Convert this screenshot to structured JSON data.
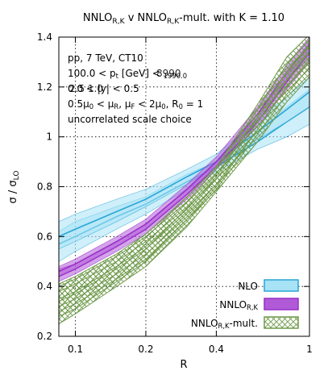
{
  "chart_data": {
    "type": "line",
    "title_parts": [
      "NNLO",
      "R,K",
      " v NNLO",
      "R,K",
      "-mult. with K = 1.10"
    ],
    "xlabel": "R",
    "ylabel_parts": [
      "σ / σ",
      "LO"
    ],
    "x_scale": "log",
    "xlim": [
      0.085,
      1.0
    ],
    "ylim": [
      0.2,
      1.4
    ],
    "x_ticks": [
      {
        "v": 0.1,
        "label": "0.1"
      },
      {
        "v": 0.2,
        "label": "0.2"
      },
      {
        "v": 0.4,
        "label": "0.4"
      },
      {
        "v": 1.0,
        "label": "1"
      }
    ],
    "y_ticks": [
      {
        "v": 0.2,
        "label": "0.2"
      },
      {
        "v": 0.4,
        "label": "0.4"
      },
      {
        "v": 0.6,
        "label": "0.6"
      },
      {
        "v": 0.8,
        "label": "0.8"
      },
      {
        "v": 1.0,
        "label": "1"
      },
      {
        "v": 1.2,
        "label": "1.2"
      },
      {
        "v": 1.4,
        "label": "1.4"
      }
    ],
    "grid": "dotted, at labeled ticks",
    "legend_placement": "bottom-right",
    "annotations": [
      {
        "parts": [
          "pp, 7 TeV, CT10"
        ]
      },
      {
        "parts": [
          "100.0 < p",
          "t",
          " [GeV] < ",
          "1990.0"
        ],
        "overprint": "8990"
      },
      {
        "parts": [
          "0.0 < |y| < 0.5"
        ],
        "overprint": "2.5 1.0"
      },
      {
        "parts": [
          "0.5μ",
          "0",
          " < μ",
          "R",
          ", μ",
          "F",
          " < 2μ",
          "0",
          ", R",
          "0",
          " = 1"
        ]
      },
      {
        "parts": [
          "uncorrelated scale choice"
        ]
      }
    ],
    "series": [
      {
        "name_parts": [
          "NLO"
        ],
        "style": "filled-band",
        "color": "#29a6d6",
        "band_color": "#a8e2f5",
        "bands": [
          {
            "x": [
              0.085,
              0.1,
              0.15,
              0.2,
              0.3,
              0.4,
              0.6,
              0.8,
              1.0
            ],
            "center": [
              0.57,
              0.6,
              0.68,
              0.73,
              0.82,
              0.88,
              0.98,
              1.06,
              1.12
            ],
            "lower": [
              0.5,
              0.54,
              0.63,
              0.69,
              0.79,
              0.86,
              0.95,
              1.0,
              1.05
            ],
            "upper": [
              0.62,
              0.66,
              0.72,
              0.76,
              0.85,
              0.9,
              1.02,
              1.12,
              1.19
            ]
          },
          {
            "x": [
              0.085,
              0.1,
              0.15,
              0.2,
              0.3,
              0.4,
              0.6,
              0.8,
              1.0
            ],
            "center": [
              0.6,
              0.63,
              0.7,
              0.75,
              0.84,
              0.9,
              1.02,
              1.11,
              1.18
            ],
            "lower": [
              0.55,
              0.58,
              0.66,
              0.72,
              0.81,
              0.88,
              0.99,
              1.06,
              1.12
            ],
            "upper": [
              0.66,
              0.69,
              0.75,
              0.79,
              0.87,
              0.93,
              1.07,
              1.16,
              1.24
            ]
          }
        ]
      },
      {
        "name_parts": [
          "NNLO",
          "R,K"
        ],
        "style": "filled-band",
        "color": "#9a30c8",
        "band_color": "#b05ad8",
        "bands": [
          {
            "x": [
              0.085,
              0.1,
              0.15,
              0.2,
              0.3,
              0.4,
              0.6,
              0.8,
              1.0
            ],
            "center": [
              0.44,
              0.47,
              0.56,
              0.63,
              0.77,
              0.88,
              1.06,
              1.22,
              1.34
            ],
            "lower": [
              0.42,
              0.45,
              0.54,
              0.61,
              0.75,
              0.87,
              1.04,
              1.19,
              1.3
            ],
            "upper": [
              0.47,
              0.49,
              0.58,
              0.65,
              0.79,
              0.9,
              1.08,
              1.25,
              1.38
            ]
          },
          {
            "x": [
              0.085,
              0.1,
              0.15,
              0.2,
              0.3,
              0.4,
              0.6,
              0.8,
              1.0
            ],
            "center": [
              0.46,
              0.49,
              0.58,
              0.65,
              0.79,
              0.9,
              1.09,
              1.26,
              1.37
            ],
            "lower": [
              0.44,
              0.47,
              0.56,
              0.63,
              0.77,
              0.88,
              1.06,
              1.23,
              1.33
            ],
            "upper": [
              0.48,
              0.51,
              0.6,
              0.67,
              0.81,
              0.92,
              1.12,
              1.29,
              1.4
            ]
          }
        ]
      },
      {
        "name_parts": [
          "NNLO",
          "R,K",
          "-mult."
        ],
        "style": "hatched-band",
        "color": "#6e9a4a",
        "band_color": "#e8f0df",
        "bands": [
          {
            "x": [
              0.085,
              0.1,
              0.15,
              0.2,
              0.3,
              0.4,
              0.6,
              0.8,
              1.0
            ],
            "center": [
              0.32,
              0.35,
              0.45,
              0.53,
              0.68,
              0.81,
              1.03,
              1.2,
              1.3
            ],
            "lower": [
              0.25,
              0.29,
              0.4,
              0.48,
              0.64,
              0.78,
              0.98,
              1.14,
              1.24
            ],
            "upper": [
              0.38,
              0.41,
              0.5,
              0.58,
              0.72,
              0.85,
              1.08,
              1.26,
              1.36
            ]
          },
          {
            "x": [
              0.085,
              0.1,
              0.15,
              0.2,
              0.3,
              0.4,
              0.6,
              0.8,
              1.0
            ],
            "center": [
              0.34,
              0.37,
              0.47,
              0.55,
              0.7,
              0.83,
              1.06,
              1.23,
              1.34
            ],
            "lower": [
              0.28,
              0.31,
              0.42,
              0.5,
              0.66,
              0.79,
              1.01,
              1.17,
              1.28
            ],
            "upper": [
              0.4,
              0.43,
              0.52,
              0.6,
              0.74,
              0.87,
              1.11,
              1.29,
              1.39
            ]
          },
          {
            "x": [
              0.085,
              0.1,
              0.15,
              0.2,
              0.3,
              0.4,
              0.6,
              0.8,
              1.0
            ],
            "center": [
              0.35,
              0.38,
              0.48,
              0.56,
              0.71,
              0.84,
              1.08,
              1.26,
              1.37
            ],
            "lower": [
              0.3,
              0.33,
              0.43,
              0.51,
              0.67,
              0.8,
              1.03,
              1.2,
              1.31
            ],
            "upper": [
              0.41,
              0.44,
              0.53,
              0.61,
              0.76,
              0.88,
              1.13,
              1.32,
              1.41
            ]
          }
        ]
      }
    ]
  }
}
